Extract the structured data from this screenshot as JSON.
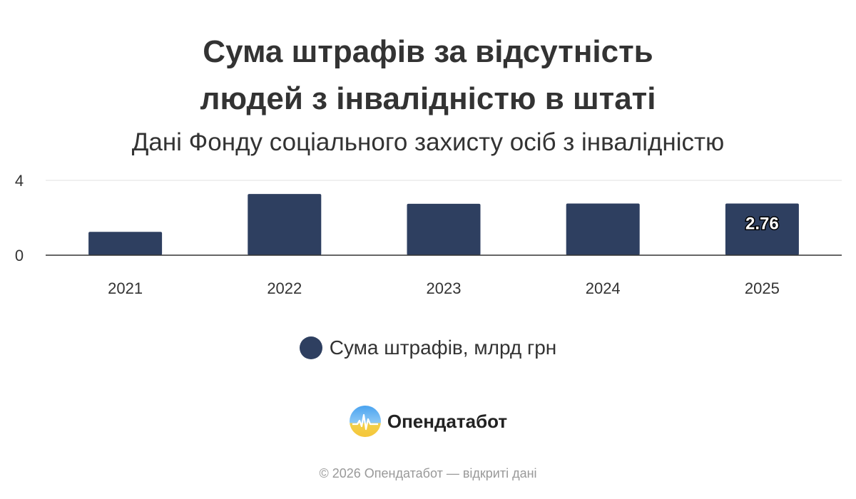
{
  "header": {
    "title_line1": "Сума штрафів за відсутність",
    "title_line2": "людей з інвалідністю в штаті",
    "subtitle": "Дані Фонду соціального захисту осіб з інвалідністю"
  },
  "chart_data": {
    "type": "bar",
    "title": "Сума штрафів за відсутність людей з інвалідністю в штаті",
    "subtitle": "Дані Фонду соціального захисту осіб з інвалідністю",
    "categories": [
      "2021",
      "2022",
      "2023",
      "2024",
      "2025"
    ],
    "series": [
      {
        "name": "Сума штрафів, млрд грн",
        "values": [
          1.25,
          3.27,
          2.75,
          2.76,
          2.76
        ],
        "color": "#2e3f60"
      }
    ],
    "data_labels": [
      {
        "category": "2025",
        "text": "2.76"
      }
    ],
    "y_ticks": [
      "0",
      "4"
    ],
    "ylim": [
      0,
      4
    ],
    "grid": true,
    "legend_position": "bottom-center"
  },
  "legend": {
    "label": "Сума штрафів, млрд грн",
    "color": "#2e3f60"
  },
  "brand": {
    "name": "Опендатабот",
    "icon": "opendatabot-logo-icon"
  },
  "footer": {
    "text": "© 2026 Опендатабот — відкриті дані"
  }
}
